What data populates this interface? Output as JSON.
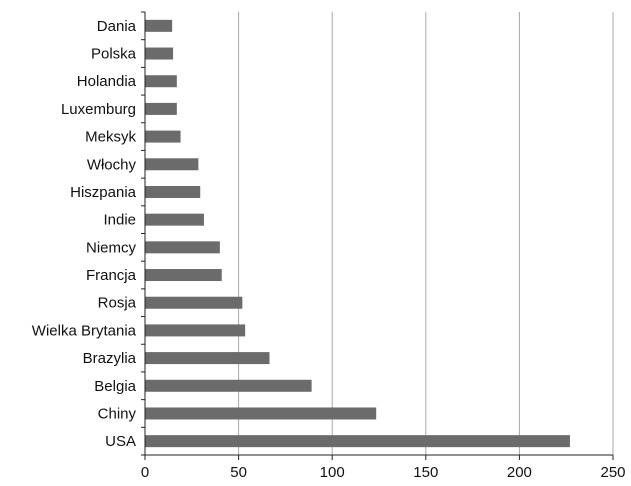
{
  "chart_data": {
    "type": "bar",
    "orientation": "horizontal",
    "categories": [
      "Dania",
      "Polska",
      "Holandia",
      "Luxemburg",
      "Meksyk",
      "Włochy",
      "Hiszpania",
      "Indie",
      "Niemcy",
      "Francja",
      "Rosja",
      "Wielka Brytania",
      "Brazylia",
      "Belgia",
      "Chiny",
      "USA"
    ],
    "values": [
      14.5,
      15,
      17,
      17,
      19,
      28.5,
      29.5,
      31.5,
      40,
      41,
      52,
      53.5,
      66.5,
      89,
      123.5,
      227
    ],
    "xlim": [
      0,
      250
    ],
    "xticks": [
      "0",
      "50",
      "100",
      "150",
      "200",
      "250"
    ],
    "grid": "vertical",
    "title": "",
    "xlabel": "",
    "ylabel": "",
    "colors": {
      "bar": "#6b6b6b",
      "grid": "#a8a8a8",
      "axis": "#222222",
      "text": "#111111"
    }
  }
}
